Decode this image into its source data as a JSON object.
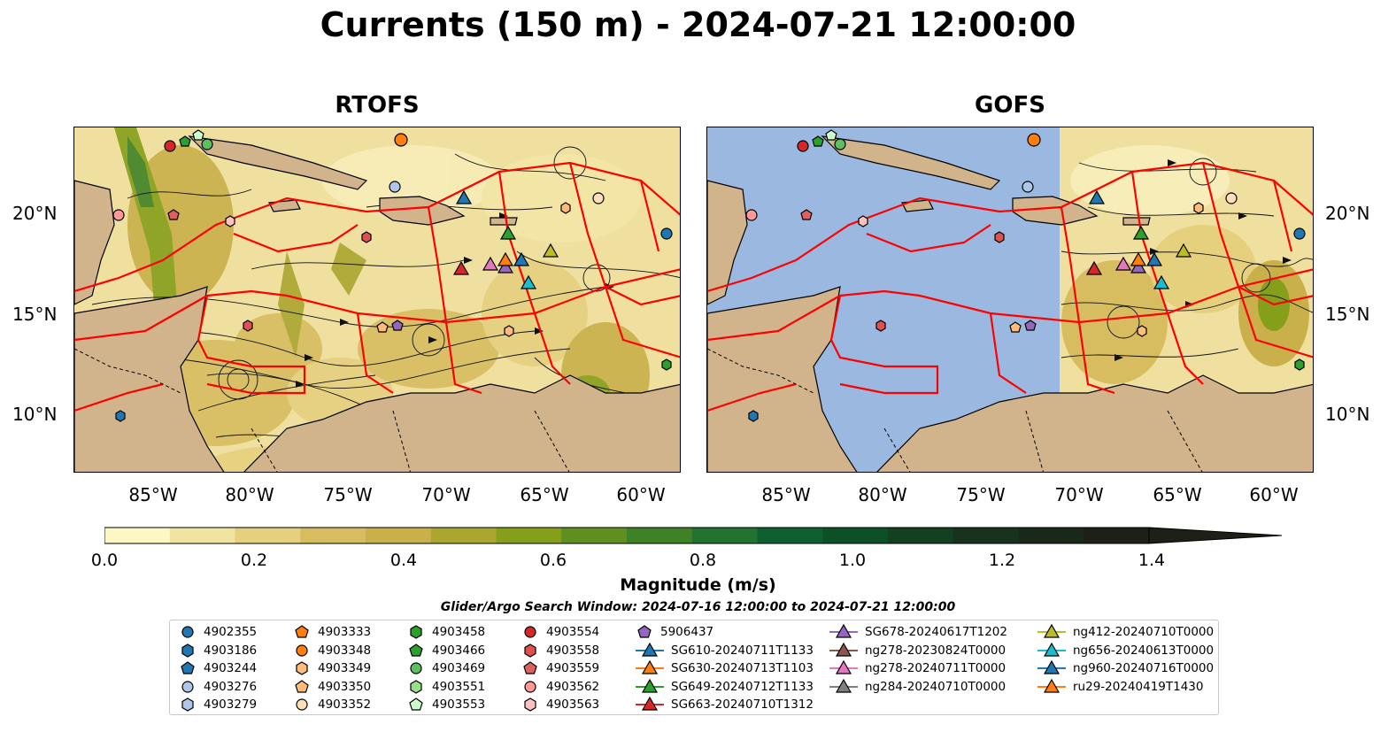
{
  "title": "Currents (150 m) - 2024-07-21 12:00:00",
  "panels": [
    {
      "name": "RTOFS"
    },
    {
      "name": "GOFS"
    }
  ],
  "lat_ticks": [
    "20°N",
    "15°N",
    "10°N"
  ],
  "lon_ticks": [
    "85°W",
    "80°W",
    "75°W",
    "70°W",
    "65°W",
    "60°W"
  ],
  "colorbar": {
    "label": "Magnitude (m/s)",
    "ticks": [
      "0.0",
      "0.2",
      "0.4",
      "0.6",
      "0.8",
      "1.0",
      "1.2",
      "1.4"
    ],
    "colors": [
      "#fcf8c4",
      "#f0e4a0",
      "#e5d07e",
      "#d7bd60",
      "#c9b04a",
      "#aaa630",
      "#869f1a",
      "#5f8f20",
      "#3f8125",
      "#227230",
      "#0f6030",
      "#0c5028",
      "#144022",
      "#18321c",
      "#1a2819",
      "#1c2016"
    ]
  },
  "search_window": "Glider/Argo Search Window: 2024-07-16 12:00:00 to 2024-07-21 12:00:00",
  "legend": [
    {
      "label": "4902355",
      "marker": "circle",
      "color": "#1f77b4"
    },
    {
      "label": "4903186",
      "marker": "hexagon",
      "color": "#1f77b4"
    },
    {
      "label": "4903244",
      "marker": "pentagon",
      "color": "#1f77b4"
    },
    {
      "label": "4903276",
      "marker": "circle",
      "color": "#aec7e8"
    },
    {
      "label": "4903279",
      "marker": "hexagon",
      "color": "#aec7e8"
    },
    {
      "label": "4903333",
      "marker": "pentagon",
      "color": "#ff7f0e"
    },
    {
      "label": "4903348",
      "marker": "circle",
      "color": "#ff7f0e"
    },
    {
      "label": "4903349",
      "marker": "hexagon",
      "color": "#ffbb78"
    },
    {
      "label": "4903350",
      "marker": "pentagon",
      "color": "#ffbb78"
    },
    {
      "label": "4903352",
      "marker": "circle",
      "color": "#ffdeb8"
    },
    {
      "label": "4903458",
      "marker": "hexagon",
      "color": "#2ca02c"
    },
    {
      "label": "4903466",
      "marker": "pentagon",
      "color": "#2ca02c"
    },
    {
      "label": "4903469",
      "marker": "circle",
      "color": "#5cc15c"
    },
    {
      "label": "4903551",
      "marker": "hexagon",
      "color": "#98df8a"
    },
    {
      "label": "4903553",
      "marker": "pentagon",
      "color": "#ccffcc"
    },
    {
      "label": "4903554",
      "marker": "circle",
      "color": "#d62728"
    },
    {
      "label": "4903558",
      "marker": "hexagon",
      "color": "#e05050"
    },
    {
      "label": "4903559",
      "marker": "pentagon",
      "color": "#e06060"
    },
    {
      "label": "4903562",
      "marker": "circle",
      "color": "#ff9896"
    },
    {
      "label": "4903563",
      "marker": "hexagon",
      "color": "#ffc0c0"
    },
    {
      "label": "5906437",
      "marker": "pentagon",
      "color": "#9467bd"
    },
    {
      "label": "SG610-20240711T1133",
      "marker": "triangle",
      "color": "#1f77b4"
    },
    {
      "label": "SG630-20240713T1103",
      "marker": "triangle",
      "color": "#ff7f0e"
    },
    {
      "label": "SG649-20240712T1133",
      "marker": "triangle",
      "color": "#2ca02c"
    },
    {
      "label": "SG663-20240710T1312",
      "marker": "triangle",
      "color": "#d62728"
    },
    {
      "label": "SG678-20240617T1202",
      "marker": "triangle",
      "color": "#9467bd"
    },
    {
      "label": "ng278-20230824T0000",
      "marker": "triangle",
      "color": "#8c564b"
    },
    {
      "label": "ng278-20240711T0000",
      "marker": "triangle",
      "color": "#e377c2"
    },
    {
      "label": "ng284-20240710T0000",
      "marker": "triangle",
      "color": "#7f7f7f"
    },
    {
      "label": "ng412-20240710T0000",
      "marker": "triangle",
      "color": "#bcbd22"
    },
    {
      "label": "ng656-20240613T0000",
      "marker": "triangle",
      "color": "#17becf"
    },
    {
      "label": "ng960-20240716T0000",
      "marker": "triangle",
      "color": "#1f77b4"
    },
    {
      "label": "ru29-20240419T1430",
      "marker": "triangle",
      "color": "#ff7f0e"
    }
  ],
  "map_colors": {
    "land": "#d2b48c",
    "ocean": "#9ab8e0",
    "boundary": "#ff0000",
    "current_low": "#f3e6a6",
    "current_mid": "#c9b04a",
    "current_high": "#6f9a28"
  }
}
